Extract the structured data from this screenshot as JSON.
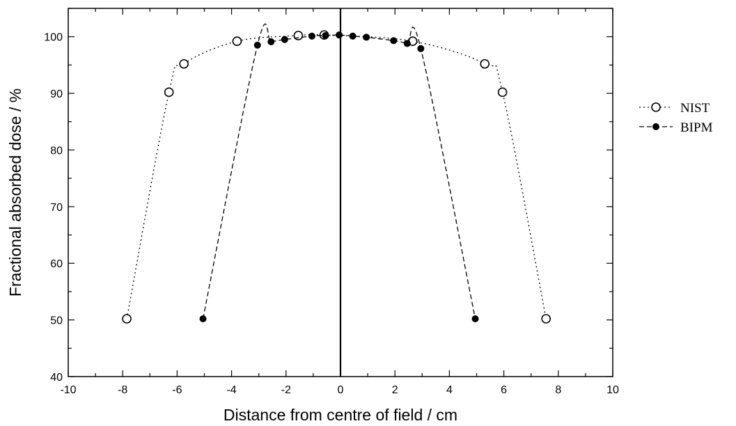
{
  "chart_data": {
    "type": "scatter",
    "title": "",
    "xlabel": "Distance from centre of field / cm",
    "ylabel": "Fractional absorbed dose / %",
    "xlim": [
      -10,
      10
    ],
    "ylim": [
      40,
      105
    ],
    "xticks": [
      -10,
      -8,
      -6,
      -4,
      -2,
      0,
      2,
      4,
      6,
      8,
      10
    ],
    "yticks": [
      40,
      50,
      60,
      70,
      80,
      90,
      100
    ],
    "xtick_labels": [
      "-10",
      "-8",
      "-6",
      "-4",
      "-2",
      "0",
      "2",
      "4",
      "6",
      "8",
      "10"
    ],
    "ytick_labels": [
      "40",
      "50",
      "60",
      "70",
      "80",
      "90",
      "100"
    ],
    "grid": false,
    "legend_position": "outside-right",
    "series": [
      {
        "name": "NIST",
        "marker": "open-circle",
        "line": "dotted",
        "color": "#000000",
        "x": [
          -7.85,
          -6.3,
          -5.75,
          -3.8,
          -1.55,
          -0.6,
          2.65,
          5.3,
          5.95,
          7.55
        ],
        "y": [
          50.2,
          90.2,
          95.2,
          99.2,
          100.2,
          100.3,
          99.2,
          95.2,
          90.2,
          50.2
        ]
      },
      {
        "name": "BIPM",
        "marker": "filled-circle",
        "line": "dashed",
        "color": "#000000",
        "x": [
          -5.05,
          -3.05,
          -2.55,
          -2.05,
          -1.05,
          -0.55,
          -0.05,
          0.45,
          0.95,
          1.95,
          2.45,
          2.95,
          4.95
        ],
        "y": [
          50.2,
          98.5,
          99.1,
          99.5,
          100.1,
          100.2,
          100.3,
          100.1,
          99.9,
          99.3,
          98.8,
          97.9,
          50.2
        ]
      }
    ]
  }
}
